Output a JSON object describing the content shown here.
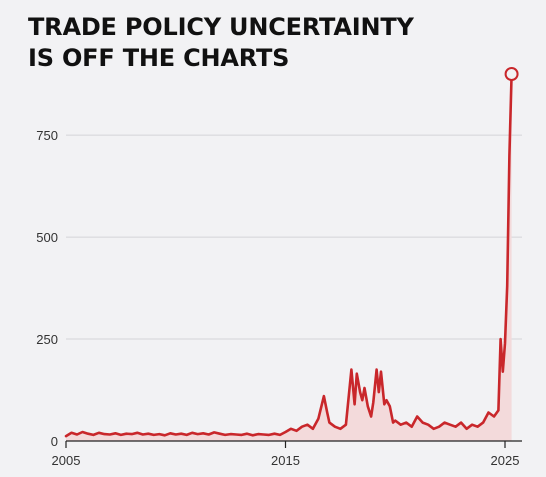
{
  "chart_data": {
    "type": "area",
    "title_lines": [
      "TRADE POLICY UNCERTAINTY",
      "IS OFF THE CHARTS"
    ],
    "xlabel": "",
    "ylabel": "",
    "xlim": [
      2005,
      2026
    ],
    "ylim": [
      0,
      900
    ],
    "x_ticks": [
      2005,
      2015,
      2025
    ],
    "y_ticks": [
      0,
      250,
      500,
      750
    ],
    "grid": "horizontal",
    "legend": "none",
    "colors": {
      "line": "#c9272b",
      "fill": "#f3dadb",
      "grid": "#d4d4d8",
      "axis": "#222222",
      "background": "#f2f2f4"
    },
    "series": [
      {
        "x": [
          2005.0,
          2005.25,
          2005.5,
          2005.75,
          2006.0,
          2006.25,
          2006.5,
          2006.75,
          2007.0,
          2007.25,
          2007.5,
          2007.75,
          2008.0,
          2008.25,
          2008.5,
          2008.75,
          2009.0,
          2009.25,
          2009.5,
          2009.75,
          2010.0,
          2010.25,
          2010.5,
          2010.75,
          2011.0,
          2011.25,
          2011.5,
          2011.75,
          2012.0,
          2012.25,
          2012.5,
          2012.75,
          2013.0,
          2013.25,
          2013.5,
          2013.75,
          2014.0,
          2014.25,
          2014.5,
          2014.75,
          2015.0,
          2015.25,
          2015.5,
          2015.75,
          2016.0,
          2016.25,
          2016.5,
          2016.75,
          2016.9,
          2017.0,
          2017.25,
          2017.5,
          2017.75,
          2018.0,
          2018.15,
          2018.25,
          2018.4,
          2018.5,
          2018.6,
          2018.75,
          2018.9,
          2019.0,
          2019.15,
          2019.25,
          2019.35,
          2019.5,
          2019.6,
          2019.75,
          2019.9,
          2020.0,
          2020.25,
          2020.5,
          2020.75,
          2021.0,
          2021.25,
          2021.5,
          2021.75,
          2022.0,
          2022.25,
          2022.5,
          2022.75,
          2023.0,
          2023.25,
          2023.5,
          2023.75,
          2024.0,
          2024.25,
          2024.5,
          2024.7,
          2024.8,
          2024.9,
          2025.0,
          2025.1,
          2025.2,
          2025.3
        ],
        "y": [
          12,
          20,
          16,
          22,
          18,
          15,
          20,
          17,
          16,
          19,
          15,
          18,
          17,
          20,
          16,
          18,
          15,
          17,
          14,
          19,
          16,
          18,
          15,
          20,
          17,
          19,
          16,
          21,
          18,
          15,
          17,
          16,
          15,
          18,
          14,
          17,
          16,
          15,
          18,
          15,
          22,
          30,
          25,
          35,
          40,
          30,
          55,
          110,
          70,
          45,
          35,
          30,
          40,
          175,
          90,
          165,
          120,
          100,
          130,
          85,
          60,
          95,
          175,
          120,
          170,
          90,
          100,
          85,
          45,
          50,
          40,
          45,
          35,
          60,
          45,
          40,
          30,
          35,
          45,
          40,
          35,
          45,
          30,
          40,
          35,
          45,
          70,
          60,
          75,
          250,
          170,
          240,
          380,
          700,
          900
        ]
      }
    ],
    "endpoint_marker": {
      "x": 2025.3,
      "y": 900,
      "shape": "open-circle"
    }
  }
}
